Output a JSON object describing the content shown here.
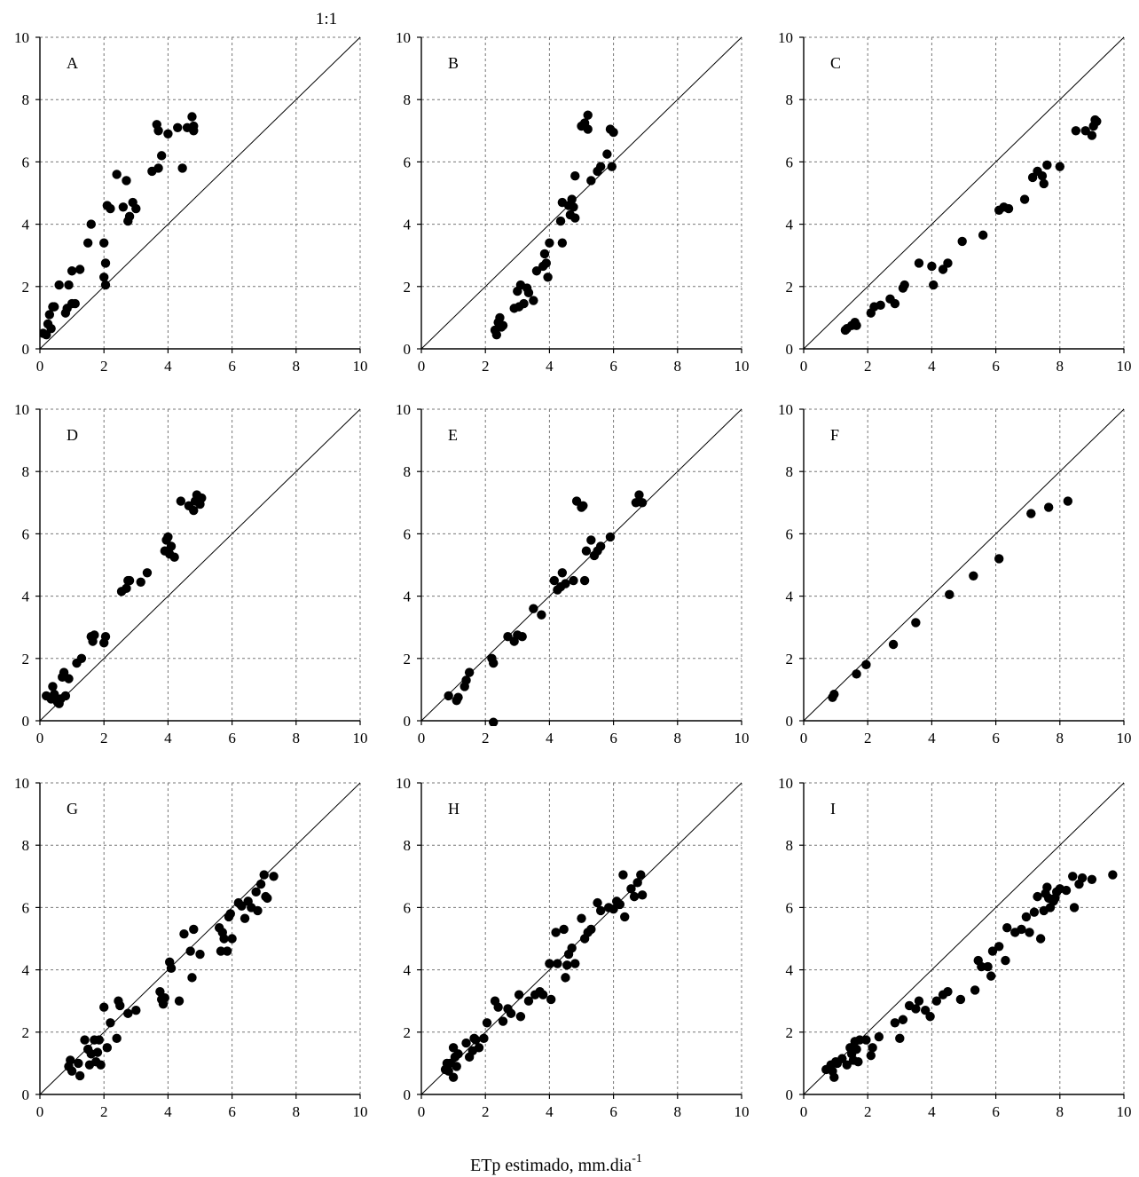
{
  "figure": {
    "top_label": "1:1",
    "xlabel_main": "ETp estimado, mm.dia",
    "xlabel_sup": "-1"
  },
  "chart_data": [
    {
      "type": "scatter",
      "panel_label": "A",
      "xlim": [
        0,
        10
      ],
      "ylim": [
        0,
        10
      ],
      "ticks": [
        0,
        2,
        4,
        6,
        8,
        10
      ],
      "tick_labels": [
        "0",
        "2",
        "4",
        "6",
        "8",
        "10"
      ],
      "grid": true,
      "reference_line": "1:1",
      "x": [
        0.1,
        0.2,
        0.3,
        0.25,
        0.35,
        0.4,
        0.45,
        0.6,
        0.8,
        0.85,
        0.9,
        1.0,
        1.0,
        1.1,
        1.25,
        1.5,
        1.6,
        2.0,
        2.0,
        2.05,
        2.05,
        2.1,
        2.2,
        2.4,
        2.6,
        2.7,
        2.75,
        2.8,
        2.9,
        3.0,
        3.5,
        3.65,
        3.7,
        3.7,
        3.8,
        4.0,
        4.3,
        4.45,
        4.6,
        4.75,
        4.8,
        4.8
      ],
      "y": [
        0.5,
        0.45,
        1.1,
        0.8,
        0.65,
        1.35,
        1.35,
        2.05,
        1.15,
        1.3,
        2.05,
        2.5,
        1.45,
        1.45,
        2.55,
        3.4,
        4.0,
        2.3,
        3.4,
        2.75,
        2.05,
        4.6,
        4.5,
        5.6,
        4.55,
        5.4,
        4.1,
        4.25,
        4.7,
        4.5,
        5.7,
        7.2,
        7.0,
        5.8,
        6.2,
        6.9,
        7.1,
        5.8,
        7.1,
        7.45,
        7.15,
        7.0
      ]
    },
    {
      "type": "scatter",
      "panel_label": "B",
      "xlim": [
        0,
        10
      ],
      "ylim": [
        0,
        10
      ],
      "ticks": [
        0,
        2,
        4,
        6,
        8,
        10
      ],
      "tick_labels": [
        "0",
        "2",
        "4",
        "6",
        "8",
        "10"
      ],
      "grid": true,
      "reference_line": "1:1",
      "x": [
        2.3,
        2.35,
        2.4,
        2.45,
        2.5,
        2.55,
        2.9,
        3.0,
        3.05,
        3.1,
        3.2,
        3.3,
        3.35,
        3.5,
        3.6,
        3.8,
        3.85,
        3.9,
        3.95,
        4.0,
        4.35,
        4.4,
        4.4,
        4.6,
        4.65,
        4.7,
        4.75,
        4.8,
        4.8,
        5.0,
        5.1,
        5.2,
        5.2,
        5.3,
        5.5,
        5.6,
        5.8,
        5.9,
        5.95,
        6.0
      ],
      "y": [
        0.6,
        0.45,
        0.85,
        1.0,
        0.7,
        0.75,
        1.3,
        1.85,
        1.35,
        2.05,
        1.45,
        1.95,
        1.8,
        1.55,
        2.5,
        2.65,
        3.05,
        2.75,
        2.3,
        3.4,
        4.1,
        3.4,
        4.7,
        4.6,
        4.3,
        4.8,
        4.55,
        4.2,
        5.55,
        7.15,
        7.25,
        7.5,
        7.05,
        5.4,
        5.7,
        5.85,
        6.25,
        7.05,
        5.85,
        6.95
      ]
    },
    {
      "type": "scatter",
      "panel_label": "C",
      "xlim": [
        0,
        10
      ],
      "ylim": [
        0,
        10
      ],
      "ticks": [
        0,
        2,
        4,
        6,
        8,
        10
      ],
      "tick_labels": [
        "0",
        "2",
        "4",
        "6",
        "8",
        "10"
      ],
      "grid": true,
      "reference_line": "1:1",
      "x": [
        1.3,
        1.35,
        1.5,
        1.6,
        1.65,
        2.1,
        2.2,
        2.4,
        2.7,
        2.85,
        3.1,
        3.15,
        3.6,
        4.0,
        4.05,
        4.35,
        4.5,
        4.95,
        5.6,
        6.1,
        6.25,
        6.4,
        6.9,
        7.15,
        7.3,
        7.45,
        7.5,
        7.6,
        8.0,
        8.5,
        8.8,
        9.0,
        9.05,
        9.1,
        9.15
      ],
      "y": [
        0.6,
        0.65,
        0.75,
        0.85,
        0.75,
        1.15,
        1.35,
        1.4,
        1.6,
        1.45,
        1.95,
        2.05,
        2.75,
        2.65,
        2.05,
        2.55,
        2.75,
        3.45,
        3.65,
        4.45,
        4.55,
        4.5,
        4.8,
        5.5,
        5.7,
        5.55,
        5.3,
        5.9,
        5.85,
        7.0,
        7.0,
        6.85,
        7.15,
        7.35,
        7.3
      ]
    },
    {
      "type": "scatter",
      "panel_label": "D",
      "xlim": [
        0,
        10
      ],
      "ylim": [
        0,
        10
      ],
      "ticks": [
        0,
        2,
        4,
        6,
        8,
        10
      ],
      "tick_labels": [
        "0",
        "2",
        "4",
        "6",
        "8",
        "10"
      ],
      "grid": true,
      "reference_line": "1:1",
      "x": [
        0.2,
        0.35,
        0.4,
        0.45,
        0.55,
        0.6,
        0.65,
        0.7,
        0.75,
        0.8,
        0.9,
        1.15,
        1.3,
        1.6,
        1.65,
        1.7,
        2.0,
        2.05,
        2.55,
        2.7,
        2.75,
        2.8,
        3.15,
        3.35,
        3.9,
        3.95,
        4.0,
        4.05,
        4.1,
        4.2,
        4.4,
        4.65,
        4.8,
        4.85,
        4.9,
        4.95,
        5.0,
        5.05
      ],
      "y": [
        0.8,
        0.7,
        1.1,
        0.85,
        0.6,
        0.55,
        0.7,
        1.4,
        1.55,
        0.8,
        1.35,
        1.85,
        2.0,
        2.7,
        2.55,
        2.75,
        2.5,
        2.7,
        4.15,
        4.25,
        4.5,
        4.5,
        4.45,
        4.75,
        5.45,
        5.8,
        5.9,
        5.35,
        5.6,
        5.25,
        7.05,
        6.9,
        6.75,
        7.05,
        7.25,
        7.1,
        6.95,
        7.15
      ]
    },
    {
      "type": "scatter",
      "panel_label": "E",
      "xlim": [
        0,
        10
      ],
      "ylim": [
        0,
        10
      ],
      "ticks": [
        0,
        2,
        4,
        6,
        8,
        10
      ],
      "tick_labels": [
        "0",
        "2",
        "4",
        "6",
        "8",
        "10"
      ],
      "grid": true,
      "reference_line": "1:1",
      "x": [
        0.85,
        1.1,
        1.15,
        1.35,
        1.4,
        1.5,
        2.2,
        2.25,
        2.25,
        2.7,
        2.9,
        3.0,
        3.15,
        3.5,
        3.75,
        4.15,
        4.25,
        4.35,
        4.4,
        4.5,
        4.75,
        4.85,
        5.0,
        5.05,
        5.1,
        5.15,
        5.3,
        5.4,
        5.5,
        5.6,
        5.9,
        6.7,
        6.8,
        6.9
      ],
      "y": [
        0.8,
        0.65,
        0.75,
        1.1,
        1.3,
        1.55,
        2.0,
        1.85,
        -0.05,
        2.7,
        2.55,
        2.75,
        2.7,
        3.6,
        3.4,
        4.5,
        4.2,
        4.3,
        4.75,
        4.4,
        4.5,
        7.05,
        6.85,
        6.9,
        4.5,
        5.45,
        5.8,
        5.3,
        5.45,
        5.6,
        5.9,
        7.0,
        7.25,
        7.0
      ]
    },
    {
      "type": "scatter",
      "panel_label": "F",
      "xlim": [
        0,
        10
      ],
      "ylim": [
        0,
        10
      ],
      "ticks": [
        0,
        2,
        4,
        6,
        8,
        10
      ],
      "tick_labels": [
        "0",
        "2",
        "4",
        "6",
        "8",
        "10"
      ],
      "grid": true,
      "reference_line": "1:1",
      "x": [
        0.9,
        0.95,
        1.65,
        1.95,
        2.8,
        3.5,
        4.55,
        5.3,
        6.1,
        7.1,
        7.65,
        8.25
      ],
      "y": [
        0.75,
        0.85,
        1.5,
        1.8,
        2.45,
        3.15,
        4.05,
        4.65,
        5.2,
        6.65,
        6.85,
        7.05
      ]
    },
    {
      "type": "scatter",
      "panel_label": "G",
      "xlim": [
        0,
        10
      ],
      "ylim": [
        0,
        10
      ],
      "ticks": [
        0,
        2,
        4,
        6,
        8,
        10
      ],
      "tick_labels": [
        "0",
        "2",
        "4",
        "6",
        "8",
        "10"
      ],
      "grid": true,
      "reference_line": "1:1",
      "x": [
        0.9,
        0.95,
        1.0,
        1.2,
        1.25,
        1.4,
        1.5,
        1.55,
        1.6,
        1.7,
        1.75,
        1.8,
        1.85,
        1.9,
        2.0,
        2.1,
        2.2,
        2.4,
        2.45,
        2.5,
        2.75,
        3.0,
        3.75,
        3.8,
        3.85,
        3.9,
        4.05,
        4.1,
        4.35,
        4.5,
        4.7,
        4.75,
        4.8,
        5.0,
        5.6,
        5.65,
        5.7,
        5.75,
        5.85,
        5.9,
        5.95,
        6.0,
        6.2,
        6.3,
        6.4,
        6.5,
        6.6,
        6.75,
        6.8,
        6.9,
        7.0,
        7.05,
        7.1,
        7.3
      ],
      "y": [
        0.9,
        1.1,
        0.75,
        1.0,
        0.6,
        1.75,
        1.45,
        0.95,
        1.3,
        1.75,
        1.05,
        1.35,
        1.75,
        0.95,
        2.8,
        1.5,
        2.3,
        1.8,
        3.0,
        2.85,
        2.6,
        2.7,
        3.3,
        3.05,
        2.9,
        3.1,
        4.25,
        4.05,
        3.0,
        5.15,
        4.6,
        3.75,
        5.3,
        4.5,
        5.35,
        4.6,
        5.2,
        5.0,
        4.6,
        5.7,
        5.8,
        5.0,
        6.15,
        6.05,
        5.65,
        6.2,
        6.0,
        6.5,
        5.9,
        6.75,
        7.05,
        6.35,
        6.3,
        7.0
      ]
    },
    {
      "type": "scatter",
      "panel_label": "H",
      "xlim": [
        0,
        10
      ],
      "ylim": [
        0,
        10
      ],
      "ticks": [
        0,
        2,
        4,
        6,
        8,
        10
      ],
      "tick_labels": [
        "0",
        "2",
        "4",
        "6",
        "8",
        "10"
      ],
      "grid": true,
      "reference_line": "1:1",
      "x": [
        0.75,
        0.8,
        0.85,
        0.9,
        1.0,
        1.0,
        1.05,
        1.1,
        1.15,
        1.4,
        1.5,
        1.6,
        1.65,
        1.7,
        1.8,
        1.95,
        2.05,
        2.3,
        2.4,
        2.55,
        2.7,
        2.8,
        3.05,
        3.1,
        3.35,
        3.55,
        3.7,
        3.8,
        4.0,
        4.05,
        4.2,
        4.25,
        4.45,
        4.5,
        4.55,
        4.6,
        4.7,
        4.8,
        5.0,
        5.1,
        5.2,
        5.3,
        5.5,
        5.6,
        5.85,
        6.0,
        6.1,
        6.2,
        6.3,
        6.35,
        6.55,
        6.65,
        6.75,
        6.85,
        6.9
      ],
      "y": [
        0.8,
        1.0,
        0.75,
        1.0,
        1.5,
        0.55,
        1.2,
        0.9,
        1.3,
        1.65,
        1.2,
        1.4,
        1.8,
        1.75,
        1.5,
        1.8,
        2.3,
        3.0,
        2.8,
        2.35,
        2.75,
        2.6,
        3.2,
        2.5,
        3.0,
        3.2,
        3.3,
        3.2,
        4.2,
        3.05,
        5.2,
        4.2,
        5.3,
        3.75,
        4.15,
        4.5,
        4.7,
        4.2,
        5.65,
        5.0,
        5.2,
        5.3,
        6.15,
        5.9,
        6.0,
        5.95,
        6.2,
        6.1,
        7.05,
        5.7,
        6.6,
        6.35,
        6.8,
        7.05,
        6.4
      ]
    },
    {
      "type": "scatter",
      "panel_label": "I",
      "xlim": [
        0,
        10
      ],
      "ylim": [
        0,
        10
      ],
      "ticks": [
        0,
        2,
        4,
        6,
        8,
        10
      ],
      "tick_labels": [
        "0",
        "2",
        "4",
        "6",
        "8",
        "10"
      ],
      "grid": true,
      "reference_line": "1:1",
      "x": [
        0.7,
        0.85,
        0.9,
        0.95,
        1.0,
        1.05,
        1.2,
        1.35,
        1.45,
        1.5,
        1.55,
        1.6,
        1.65,
        1.7,
        1.75,
        1.95,
        2.1,
        2.15,
        2.35,
        2.85,
        3.0,
        3.1,
        3.3,
        3.5,
        3.6,
        3.8,
        3.95,
        4.15,
        4.35,
        4.5,
        4.9,
        5.35,
        5.45,
        5.55,
        5.75,
        5.85,
        5.9,
        6.1,
        6.3,
        6.35,
        6.6,
        6.8,
        6.95,
        7.05,
        7.2,
        7.3,
        7.4,
        7.5,
        7.55,
        7.6,
        7.65,
        7.7,
        7.8,
        7.85,
        7.9,
        8.0,
        8.2,
        8.4,
        8.45,
        8.6,
        8.7,
        9.0,
        9.65
      ],
      "y": [
        0.8,
        0.95,
        0.75,
        0.55,
        1.05,
        1.0,
        1.15,
        0.95,
        1.5,
        1.3,
        1.1,
        1.7,
        1.45,
        1.05,
        1.75,
        1.75,
        1.25,
        1.5,
        1.85,
        2.3,
        1.8,
        2.4,
        2.85,
        2.75,
        3.0,
        2.7,
        2.5,
        3.0,
        3.2,
        3.3,
        3.05,
        3.35,
        4.3,
        4.1,
        4.1,
        3.8,
        4.6,
        4.75,
        4.3,
        5.35,
        5.2,
        5.3,
        5.7,
        5.2,
        5.85,
        6.35,
        5.0,
        5.9,
        6.45,
        6.65,
        6.3,
        6.0,
        6.2,
        6.3,
        6.5,
        6.6,
        6.55,
        7.0,
        6.0,
        6.75,
        6.95,
        6.9,
        7.05
      ]
    }
  ]
}
